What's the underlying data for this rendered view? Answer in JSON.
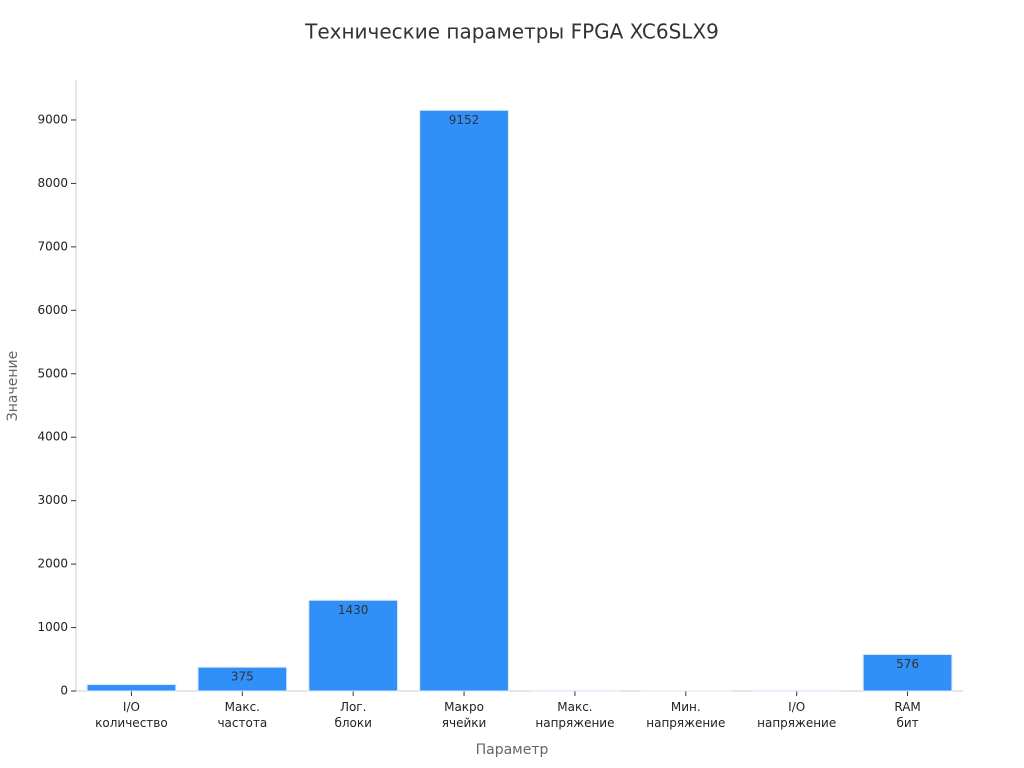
{
  "chart_data": {
    "type": "bar",
    "title": "Технические параметры FPGA XC6SLX9",
    "xlabel": "Параметр",
    "ylabel": "Значение",
    "categories": [
      "I/O\nколичество",
      "Макс.\nчастота",
      "Лог.\nблоки",
      "Макро\nячейки",
      "Макс.\nнапряжение",
      "Мин.\nнапряжение",
      "I/O\nнапряжение",
      "RAM\nбит"
    ],
    "values": [
      102,
      375,
      1430,
      9152,
      3.3,
      1.2,
      3.3,
      576
    ],
    "color": "#3090f8",
    "ylim": [
      0,
      9630
    ],
    "yticks": [
      0,
      1000,
      2000,
      3000,
      4000,
      5000,
      6000,
      7000,
      8000,
      9000
    ]
  }
}
